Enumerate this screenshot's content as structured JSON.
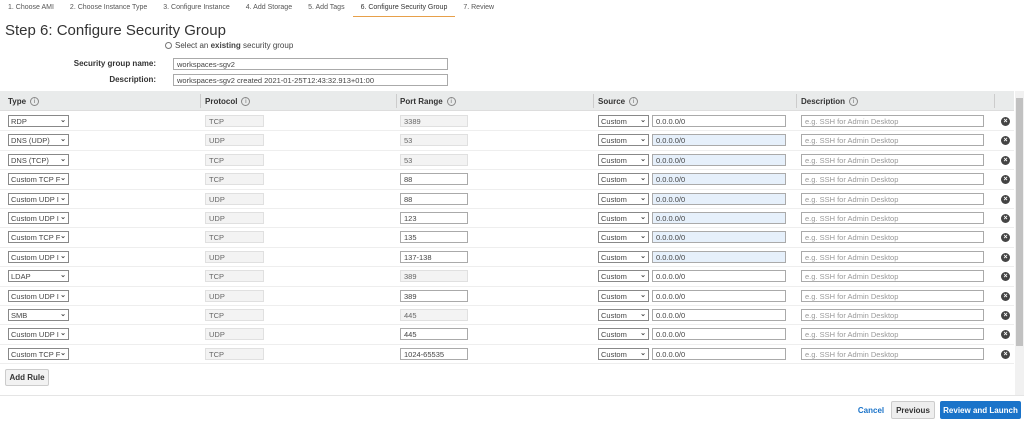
{
  "wizard_tabs": [
    "1. Choose AMI",
    "2. Choose Instance Type",
    "3. Configure Instance",
    "4. Add Storage",
    "5. Add Tags",
    "6. Configure Security Group",
    "7. Review"
  ],
  "active_tab": 5,
  "title": "Step 6: Configure Security Group",
  "radio": {
    "pre": "Select an ",
    "bold": "existing",
    "post": " security group"
  },
  "group_name": {
    "label": "Security group name:",
    "value": "workspaces-sgv2"
  },
  "description": {
    "label": "Description:",
    "value": "workspaces-sgv2 created 2021-01-25T12:43:32.913+01:00"
  },
  "columns": [
    "Type",
    "Protocol",
    "Port Range",
    "Source",
    "Description"
  ],
  "info_icon": "i",
  "rules": [
    {
      "type": "RDP",
      "protocol": "TCP",
      "port": "3389",
      "port_editable": false,
      "source": "Custom",
      "cidr": "0.0.0.0/0",
      "highlight": false
    },
    {
      "type": "DNS (UDP)",
      "protocol": "UDP",
      "port": "53",
      "port_editable": false,
      "source": "Custom",
      "cidr": "0.0.0.0/0",
      "highlight": true
    },
    {
      "type": "DNS (TCP)",
      "protocol": "TCP",
      "port": "53",
      "port_editable": false,
      "source": "Custom",
      "cidr": "0.0.0.0/0",
      "highlight": true
    },
    {
      "type": "Custom TCP F",
      "protocol": "TCP",
      "port": "88",
      "port_editable": true,
      "source": "Custom",
      "cidr": "0.0.0.0/0",
      "highlight": true
    },
    {
      "type": "Custom UDP I",
      "protocol": "UDP",
      "port": "88",
      "port_editable": true,
      "source": "Custom",
      "cidr": "0.0.0.0/0",
      "highlight": true
    },
    {
      "type": "Custom UDP I",
      "protocol": "UDP",
      "port": "123",
      "port_editable": true,
      "source": "Custom",
      "cidr": "0.0.0.0/0",
      "highlight": true
    },
    {
      "type": "Custom TCP F",
      "protocol": "TCP",
      "port": "135",
      "port_editable": true,
      "source": "Custom",
      "cidr": "0.0.0.0/0",
      "highlight": true
    },
    {
      "type": "Custom UDP I",
      "protocol": "UDP",
      "port": "137-138",
      "port_editable": true,
      "source": "Custom",
      "cidr": "0.0.0.0/0",
      "highlight": true
    },
    {
      "type": "LDAP",
      "protocol": "TCP",
      "port": "389",
      "port_editable": false,
      "source": "Custom",
      "cidr": "0.0.0.0/0",
      "highlight": false
    },
    {
      "type": "Custom UDP I",
      "protocol": "UDP",
      "port": "389",
      "port_editable": true,
      "source": "Custom",
      "cidr": "0.0.0.0/0",
      "highlight": false
    },
    {
      "type": "SMB",
      "protocol": "TCP",
      "port": "445",
      "port_editable": false,
      "source": "Custom",
      "cidr": "0.0.0.0/0",
      "highlight": false
    },
    {
      "type": "Custom UDP I",
      "protocol": "UDP",
      "port": "445",
      "port_editable": true,
      "source": "Custom",
      "cidr": "0.0.0.0/0",
      "highlight": false
    },
    {
      "type": "Custom TCP F",
      "protocol": "TCP",
      "port": "1024-65535",
      "port_editable": true,
      "source": "Custom",
      "cidr": "0.0.0.0/0",
      "highlight": false
    }
  ],
  "description_placeholder": "e.g. SSH for Admin Desktop",
  "add_rule": "Add Rule",
  "footer": {
    "cancel": "Cancel",
    "previous": "Previous",
    "review": "Review and Launch"
  },
  "colors": {
    "primary": "#1a73c9",
    "link": "#1a73c9",
    "active_tab": "#e7a04a",
    "highlight": "#e6f0fb"
  }
}
